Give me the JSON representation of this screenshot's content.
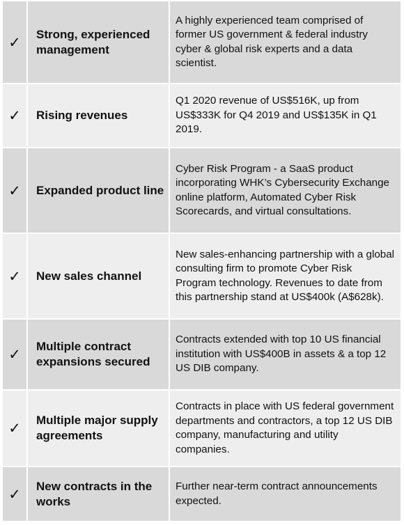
{
  "check_mark": "✓",
  "colors": {
    "row_dark": "#d9d9d9",
    "row_light": "#eeeeee",
    "text": "#111111"
  },
  "rows": [
    {
      "title": "Strong, experienced management",
      "description": "A highly experienced team comprised of former US government & federal industry cyber & global risk experts and a data scientist."
    },
    {
      "title": "Rising revenues",
      "description": "Q1 2020 revenue of US$516K, up from US$333K for Q4 2019 and US$135K in Q1 2019."
    },
    {
      "title": "Expanded product line",
      "description": "Cyber Risk Program - a SaaS product incorporating WHK’s Cybersecurity Exchange online platform, Automated Cyber Risk Scorecards, and virtual consultations."
    },
    {
      "title": "New sales channel",
      "description": "New sales-enhancing partnership with a global consulting firm to promote Cyber Risk Program technology. Revenues to date from this partnership stand at US$400k (A$628k)."
    },
    {
      "title": "Multiple contract expansions secured",
      "description": "Contracts extended with top 10 US financial institution with US$400B in assets & a top 12 US DIB company."
    },
    {
      "title": "Multiple major supply agreements",
      "description": "Contracts in place with US federal government departments and contractors, a top 12 US DIB company, manufacturing and utility companies."
    },
    {
      "title": "New contracts in the works",
      "description": "Further near-term contract announcements expected."
    }
  ]
}
